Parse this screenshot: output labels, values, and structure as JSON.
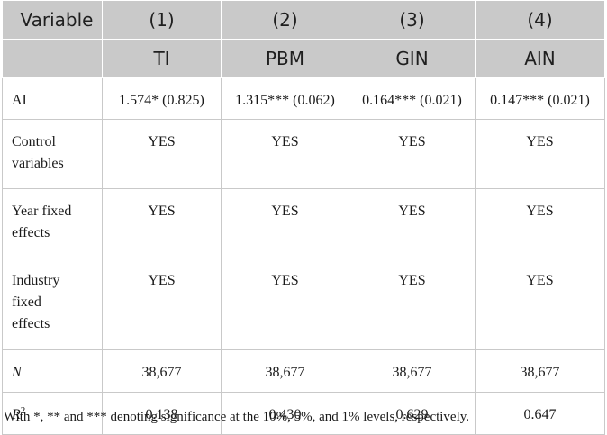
{
  "table": {
    "header": {
      "variable_label": "Variable",
      "columns": [
        {
          "number": "(1)",
          "name": "TI"
        },
        {
          "number": "(2)",
          "name": "PBM"
        },
        {
          "number": "(3)",
          "name": "GIN"
        },
        {
          "number": "(4)",
          "name": "AIN"
        }
      ]
    },
    "rows": [
      {
        "label": "AI",
        "cells": [
          "1.574* (0.825)",
          "1.315*** (0.062)",
          "0.164*** (0.021)",
          "0.147*** (0.021)"
        ]
      },
      {
        "label_lines": [
          "Control",
          "variables"
        ],
        "cells": [
          "YES",
          "YES",
          "YES",
          "YES"
        ]
      },
      {
        "label_lines": [
          "Year fixed",
          "effects"
        ],
        "cells": [
          "YES",
          "YES",
          "YES",
          "YES"
        ]
      },
      {
        "label_lines": [
          "Industry",
          "fixed",
          "effects"
        ],
        "cells": [
          "YES",
          "YES",
          "YES",
          "YES"
        ]
      },
      {
        "label": "N",
        "cells": [
          "38,677",
          "38,677",
          "38,677",
          "38,677"
        ]
      },
      {
        "label": "R",
        "label_sup": "2",
        "cells": [
          "0.138",
          "0.430",
          "0.629",
          "0.647"
        ]
      }
    ]
  },
  "footnote": "With *, ** and *** denoting significance at the 10%, 5%, and 1% levels, respectively."
}
